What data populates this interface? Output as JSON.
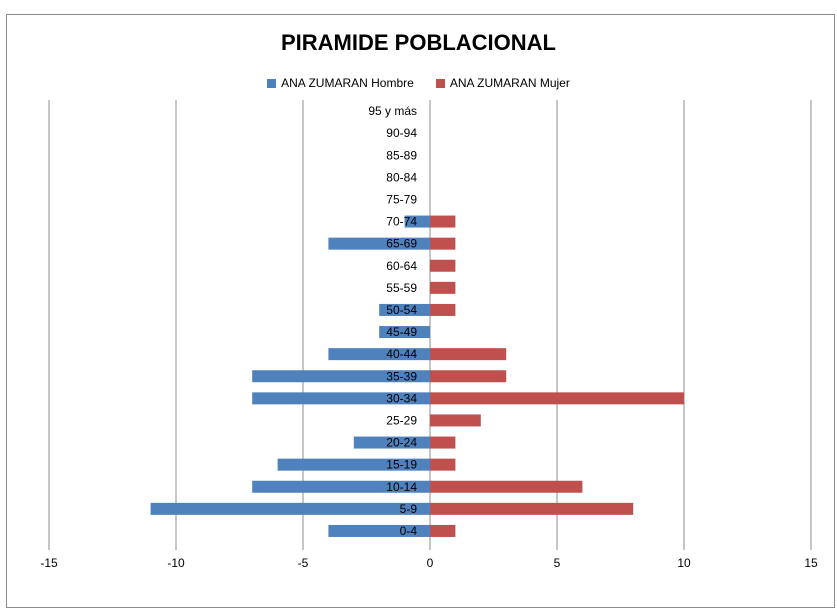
{
  "chart_data": {
    "type": "bar",
    "orientation": "horizontal",
    "title": "PIRAMIDE POBLACIONAL",
    "categories": [
      "0-4",
      "5-9",
      "10-14",
      "15-19",
      "20-24",
      "25-29",
      "30-34",
      "35-39",
      "40-44",
      "45-49",
      "50-54",
      "55-59",
      "60-64",
      "65-69",
      "70-74",
      "75-79",
      "80-84",
      "85-89",
      "90-94",
      "95 y más"
    ],
    "series": [
      {
        "name": "ANA ZUMARAN Hombre",
        "color": "#4f81bd",
        "values": [
          -4,
          -11,
          -7,
          -6,
          -3,
          0,
          -7,
          -7,
          -4,
          -2,
          -2,
          0,
          0,
          -4,
          -1,
          0,
          0,
          0,
          0,
          0
        ]
      },
      {
        "name": "ANA ZUMARAN Mujer",
        "color": "#c0504d",
        "values": [
          1,
          8,
          6,
          1,
          1,
          2,
          10,
          3,
          3,
          0,
          1,
          1,
          1,
          1,
          1,
          0,
          0,
          0,
          0,
          0
        ]
      }
    ],
    "xlim": [
      -15,
      15
    ],
    "xticks": [
      -15,
      -10,
      -5,
      0,
      5,
      10,
      15
    ],
    "grid": true,
    "legend_position": "top"
  }
}
